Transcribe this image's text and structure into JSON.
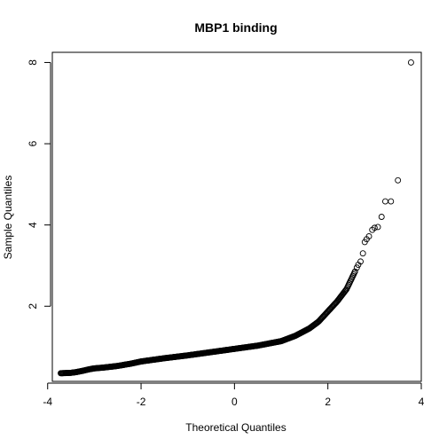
{
  "chart_data": {
    "type": "scatter",
    "title": "MBP1 binding",
    "xlabel": "Theoretical Quantiles",
    "ylabel": "Sample Quantiles",
    "xlim": [
      -3.9,
      4.0
    ],
    "ylim": [
      0.15,
      8.25
    ],
    "xticks": [
      -4,
      -2,
      0,
      2,
      4
    ],
    "yticks": [
      2,
      4,
      6,
      8
    ],
    "grid": false,
    "legend": "none",
    "point_color": "#000000",
    "anchors": [
      [
        -3.72,
        0.35
      ],
      [
        -3.5,
        0.36
      ],
      [
        -3.38,
        0.38
      ],
      [
        -3.25,
        0.41
      ],
      [
        -3.1,
        0.45
      ],
      [
        -3.0,
        0.47
      ],
      [
        -2.8,
        0.49
      ],
      [
        -2.5,
        0.53
      ],
      [
        -2.2,
        0.59
      ],
      [
        -2.0,
        0.64
      ],
      [
        -1.5,
        0.72
      ],
      [
        -1.0,
        0.79
      ],
      [
        -0.5,
        0.87
      ],
      [
        0.0,
        0.95
      ],
      [
        0.5,
        1.03
      ],
      [
        1.0,
        1.14
      ],
      [
        1.3,
        1.27
      ],
      [
        1.6,
        1.45
      ],
      [
        1.8,
        1.62
      ],
      [
        2.0,
        1.87
      ],
      [
        2.2,
        2.12
      ],
      [
        2.4,
        2.42
      ],
      [
        2.6,
        2.9
      ],
      [
        2.75,
        3.35
      ],
      [
        2.9,
        3.75
      ],
      [
        3.05,
        3.95
      ]
    ],
    "tail_points": [
      [
        2.62,
        2.95
      ],
      [
        2.65,
        3.02
      ],
      [
        2.7,
        3.1
      ],
      [
        2.75,
        3.3
      ],
      [
        2.79,
        3.58
      ],
      [
        2.83,
        3.65
      ],
      [
        2.88,
        3.72
      ],
      [
        2.95,
        3.88
      ],
      [
        3.0,
        3.93
      ],
      [
        3.07,
        3.95
      ],
      [
        3.15,
        4.2
      ],
      [
        3.23,
        4.58
      ],
      [
        3.35,
        4.58
      ],
      [
        3.5,
        5.1
      ],
      [
        3.78,
        8.0
      ]
    ],
    "n_points": 420
  }
}
